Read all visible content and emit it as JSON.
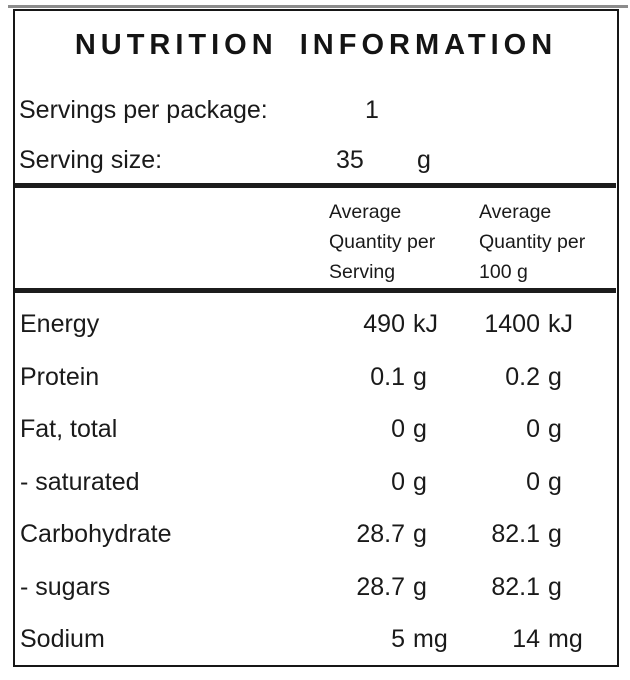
{
  "panel": {
    "title": "NUTRITION INFORMATION",
    "servings": {
      "label": "Servings per package:",
      "value": "1"
    },
    "serving_size": {
      "label": "Serving size:",
      "value": "35",
      "unit": "g"
    },
    "column_headers": {
      "per_serving": [
        "Average",
        "Quantity per",
        "Serving"
      ],
      "per_100g": [
        "Average",
        "Quantity per",
        "100 g"
      ]
    },
    "rows": [
      {
        "name": "Energy",
        "serving_value": "490",
        "serving_unit": "kJ",
        "per100_value": "1400",
        "per100_unit": "kJ"
      },
      {
        "name": "Protein",
        "serving_value": "0.1",
        "serving_unit": "g",
        "per100_value": "0.2",
        "per100_unit": "g"
      },
      {
        "name": "Fat, total",
        "serving_value": "0",
        "serving_unit": "g",
        "per100_value": "0",
        "per100_unit": "g"
      },
      {
        "name": "- saturated",
        "serving_value": "0",
        "serving_unit": "g",
        "per100_value": "0",
        "per100_unit": "g"
      },
      {
        "name": "Carbohydrate",
        "serving_value": "28.7",
        "serving_unit": "g",
        "per100_value": "82.1",
        "per100_unit": "g"
      },
      {
        "name": "- sugars",
        "serving_value": "28.7",
        "serving_unit": "g",
        "per100_value": "82.1",
        "per100_unit": "g"
      },
      {
        "name": "Sodium",
        "serving_value": "5",
        "serving_unit": "mg",
        "per100_value": "14",
        "per100_unit": "mg"
      }
    ]
  },
  "colors": {
    "background": "#ffffff",
    "text": "#1a1a1a",
    "border": "#161616",
    "rule": "#1c1c1c",
    "scan_edge": "#8c8c8c"
  }
}
